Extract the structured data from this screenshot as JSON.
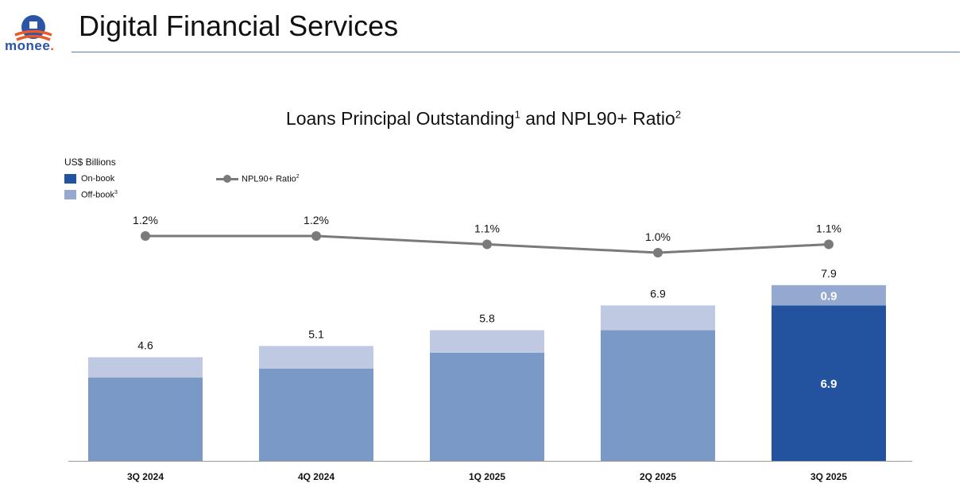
{
  "header": {
    "logo_text": "monee",
    "page_title": "Digital Financial Services"
  },
  "colors": {
    "on_book_current": "#23529e",
    "on_book_past": "#7a99c6",
    "off_book_current": "#95a8cf",
    "off_book_past": "#bfcae2",
    "line": "#7a7a7a",
    "rule": "#5b7fb5"
  },
  "chart_data": {
    "type": "bar",
    "stacked": true,
    "title": "Loans Principal Outstanding",
    "title_sup_1": "1",
    "title_mid": " and NPL90+ Ratio",
    "title_sup_2": "2",
    "units_label": "US$ Billions",
    "categories": [
      "3Q 2024",
      "4Q 2024",
      "1Q 2025",
      "2Q 2025",
      "3Q 2025"
    ],
    "series": [
      {
        "name": "On-book",
        "values": [
          3.7,
          4.1,
          4.8,
          5.8,
          6.9
        ]
      },
      {
        "name": "Off-book",
        "name_sup": "3",
        "values": [
          0.9,
          1.0,
          1.0,
          1.1,
          0.9
        ]
      }
    ],
    "totals": [
      "4.6",
      "5.1",
      "5.8",
      "6.9",
      "7.9"
    ],
    "segment_labels": {
      "index": 4,
      "on_book": "6.9",
      "off_book": "0.9"
    },
    "line_series": {
      "name": "NPL90+ Ratio",
      "name_sup": "2",
      "values": [
        1.2,
        1.2,
        1.1,
        1.0,
        1.1
      ],
      "labels": [
        "1.2%",
        "1.2%",
        "1.1%",
        "1.0%",
        "1.1%"
      ]
    },
    "ylim": [
      0,
      8.5
    ],
    "grid": false,
    "legend": "top-left"
  }
}
